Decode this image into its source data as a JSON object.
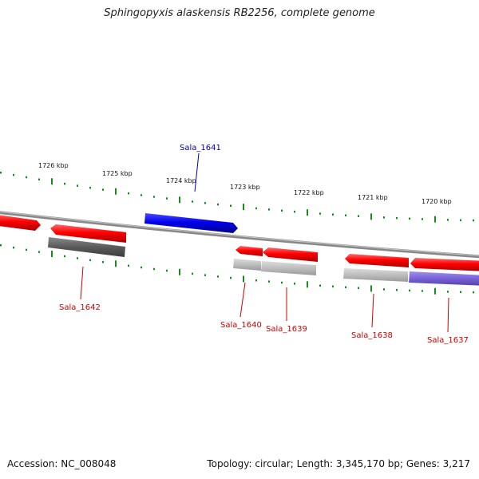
{
  "title": "Sphingopyxis alaskensis RB2256, complete genome",
  "footer": {
    "accession": "Accession: NC_008048",
    "topology": "Topology: circular; Length: 3,345,170 bp; Genes: 3,217"
  },
  "ruler": {
    "labels": [
      "1726 kbp",
      "1725 kbp",
      "1724 kbp",
      "1723 kbp",
      "1722 kbp",
      "1721 kbp",
      "1720 kbp"
    ]
  },
  "genes": [
    {
      "name": "Sala_1642",
      "color": "#cc0000"
    },
    {
      "name": "Sala_1641",
      "color": "#0000aa"
    },
    {
      "name": "Sala_1640",
      "color": "#cc0000"
    },
    {
      "name": "Sala_1639",
      "color": "#cc0000"
    },
    {
      "name": "Sala_1638",
      "color": "#cc0000"
    },
    {
      "name": "Sala_1637",
      "color": "#cc0000"
    }
  ],
  "colors": {
    "backbone": "#888888",
    "ruler_ticks": "#1a8a1a",
    "forward_gene": "#0000ee",
    "reverse_gene": "#ee0000",
    "feature_dark": "#666666",
    "feature_light": "#b8b8b8",
    "feature_purple": "#7a66cc"
  }
}
